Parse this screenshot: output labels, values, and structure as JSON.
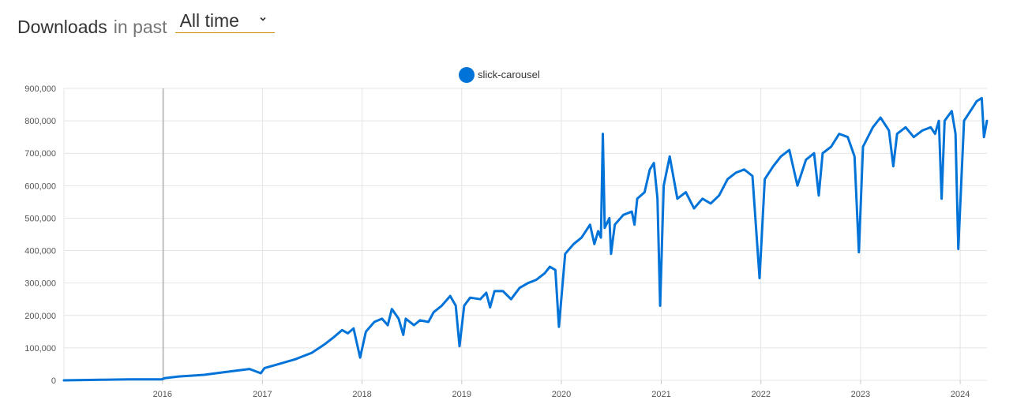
{
  "header": {
    "title": "Downloads",
    "subtitle": "in past",
    "range_value": "All time"
  },
  "colors": {
    "series": "#0073d9",
    "grid": "#e4e4e4",
    "cursor": "#9a9a9a",
    "select_underline": "#cb8a00"
  },
  "chart_data": {
    "type": "line",
    "series": [
      {
        "name": "slick-carousel",
        "points": [
          [
            "2015-01-05",
            0
          ],
          [
            "2015-06-01",
            2000
          ],
          [
            "2015-09-01",
            3000
          ],
          [
            "2015-12-28",
            3000
          ],
          [
            "2016-01-11",
            7000
          ],
          [
            "2016-03-01",
            12000
          ],
          [
            "2016-06-01",
            17000
          ],
          [
            "2016-09-01",
            27000
          ],
          [
            "2016-11-15",
            35000
          ],
          [
            "2016-12-26",
            22000
          ],
          [
            "2017-01-09",
            38000
          ],
          [
            "2017-03-01",
            50000
          ],
          [
            "2017-05-01",
            65000
          ],
          [
            "2017-07-01",
            85000
          ],
          [
            "2017-08-15",
            110000
          ],
          [
            "2017-09-15",
            130000
          ],
          [
            "2017-10-20",
            155000
          ],
          [
            "2017-11-10",
            145000
          ],
          [
            "2017-12-01",
            160000
          ],
          [
            "2017-12-25",
            70000
          ],
          [
            "2018-01-15",
            150000
          ],
          [
            "2018-02-15",
            180000
          ],
          [
            "2018-03-15",
            190000
          ],
          [
            "2018-04-05",
            170000
          ],
          [
            "2018-04-20",
            220000
          ],
          [
            "2018-05-15",
            190000
          ],
          [
            "2018-06-01",
            140000
          ],
          [
            "2018-06-10",
            190000
          ],
          [
            "2018-07-10",
            170000
          ],
          [
            "2018-08-01",
            185000
          ],
          [
            "2018-09-01",
            180000
          ],
          [
            "2018-09-20",
            210000
          ],
          [
            "2018-10-20",
            230000
          ],
          [
            "2018-11-20",
            260000
          ],
          [
            "2018-12-10",
            230000
          ],
          [
            "2018-12-24",
            105000
          ],
          [
            "2019-01-10",
            230000
          ],
          [
            "2019-02-01",
            255000
          ],
          [
            "2019-03-10",
            250000
          ],
          [
            "2019-04-01",
            270000
          ],
          [
            "2019-04-15",
            225000
          ],
          [
            "2019-05-01",
            275000
          ],
          [
            "2019-06-01",
            275000
          ],
          [
            "2019-07-01",
            250000
          ],
          [
            "2019-08-01",
            285000
          ],
          [
            "2019-09-01",
            300000
          ],
          [
            "2019-10-01",
            310000
          ],
          [
            "2019-11-01",
            330000
          ],
          [
            "2019-11-20",
            350000
          ],
          [
            "2019-12-10",
            340000
          ],
          [
            "2019-12-23",
            165000
          ],
          [
            "2020-01-15",
            390000
          ],
          [
            "2020-02-15",
            420000
          ],
          [
            "2020-03-15",
            440000
          ],
          [
            "2020-04-15",
            480000
          ],
          [
            "2020-05-01",
            420000
          ],
          [
            "2020-05-15",
            460000
          ],
          [
            "2020-05-25",
            440000
          ],
          [
            "2020-06-01",
            760000
          ],
          [
            "2020-06-08",
            470000
          ],
          [
            "2020-06-25",
            500000
          ],
          [
            "2020-07-01",
            390000
          ],
          [
            "2020-07-15",
            480000
          ],
          [
            "2020-08-15",
            510000
          ],
          [
            "2020-09-15",
            520000
          ],
          [
            "2020-09-25",
            480000
          ],
          [
            "2020-10-05",
            560000
          ],
          [
            "2020-11-01",
            580000
          ],
          [
            "2020-11-20",
            650000
          ],
          [
            "2020-12-05",
            670000
          ],
          [
            "2020-12-18",
            560000
          ],
          [
            "2020-12-28",
            230000
          ],
          [
            "2021-01-10",
            600000
          ],
          [
            "2021-02-01",
            690000
          ],
          [
            "2021-03-01",
            560000
          ],
          [
            "2021-04-01",
            580000
          ],
          [
            "2021-05-01",
            530000
          ],
          [
            "2021-06-01",
            560000
          ],
          [
            "2021-07-01",
            545000
          ],
          [
            "2021-08-01",
            570000
          ],
          [
            "2021-09-01",
            620000
          ],
          [
            "2021-10-01",
            640000
          ],
          [
            "2021-11-01",
            650000
          ],
          [
            "2021-12-01",
            630000
          ],
          [
            "2021-12-27",
            315000
          ],
          [
            "2022-01-15",
            620000
          ],
          [
            "2022-02-15",
            660000
          ],
          [
            "2022-03-15",
            690000
          ],
          [
            "2022-04-15",
            710000
          ],
          [
            "2022-05-15",
            600000
          ],
          [
            "2022-06-15",
            680000
          ],
          [
            "2022-07-15",
            700000
          ],
          [
            "2022-08-01",
            570000
          ],
          [
            "2022-08-15",
            700000
          ],
          [
            "2022-09-15",
            720000
          ],
          [
            "2022-10-15",
            760000
          ],
          [
            "2022-11-15",
            750000
          ],
          [
            "2022-12-10",
            690000
          ],
          [
            "2022-12-26",
            395000
          ],
          [
            "2023-01-10",
            720000
          ],
          [
            "2023-02-15",
            780000
          ],
          [
            "2023-03-15",
            810000
          ],
          [
            "2023-04-15",
            770000
          ],
          [
            "2023-05-01",
            660000
          ],
          [
            "2023-05-15",
            760000
          ],
          [
            "2023-06-15",
            780000
          ],
          [
            "2023-07-15",
            750000
          ],
          [
            "2023-08-15",
            770000
          ],
          [
            "2023-09-15",
            780000
          ],
          [
            "2023-10-01",
            760000
          ],
          [
            "2023-10-15",
            800000
          ],
          [
            "2023-10-25",
            560000
          ],
          [
            "2023-11-05",
            800000
          ],
          [
            "2023-12-01",
            830000
          ],
          [
            "2023-12-15",
            760000
          ],
          [
            "2023-12-25",
            405000
          ],
          [
            "2024-01-15",
            800000
          ],
          [
            "2024-02-15",
            840000
          ],
          [
            "2024-03-01",
            860000
          ],
          [
            "2024-03-20",
            870000
          ],
          [
            "2024-03-28",
            750000
          ],
          [
            "2024-04-08",
            800000
          ]
        ]
      }
    ],
    "x_ticks": [
      "2016",
      "2017",
      "2018",
      "2019",
      "2020",
      "2021",
      "2022",
      "2023",
      "2024"
    ],
    "y_ticks": [
      "0",
      "100,000",
      "200,000",
      "300,000",
      "400,000",
      "500,000",
      "600,000",
      "700,000",
      "800,000",
      "900,000"
    ],
    "xlim": [
      "2015-01-05",
      "2024-04-08"
    ],
    "ylim": [
      0,
      900000
    ],
    "grid": true,
    "legend_position": "top-center",
    "cursor_date": "2016-01-04"
  }
}
